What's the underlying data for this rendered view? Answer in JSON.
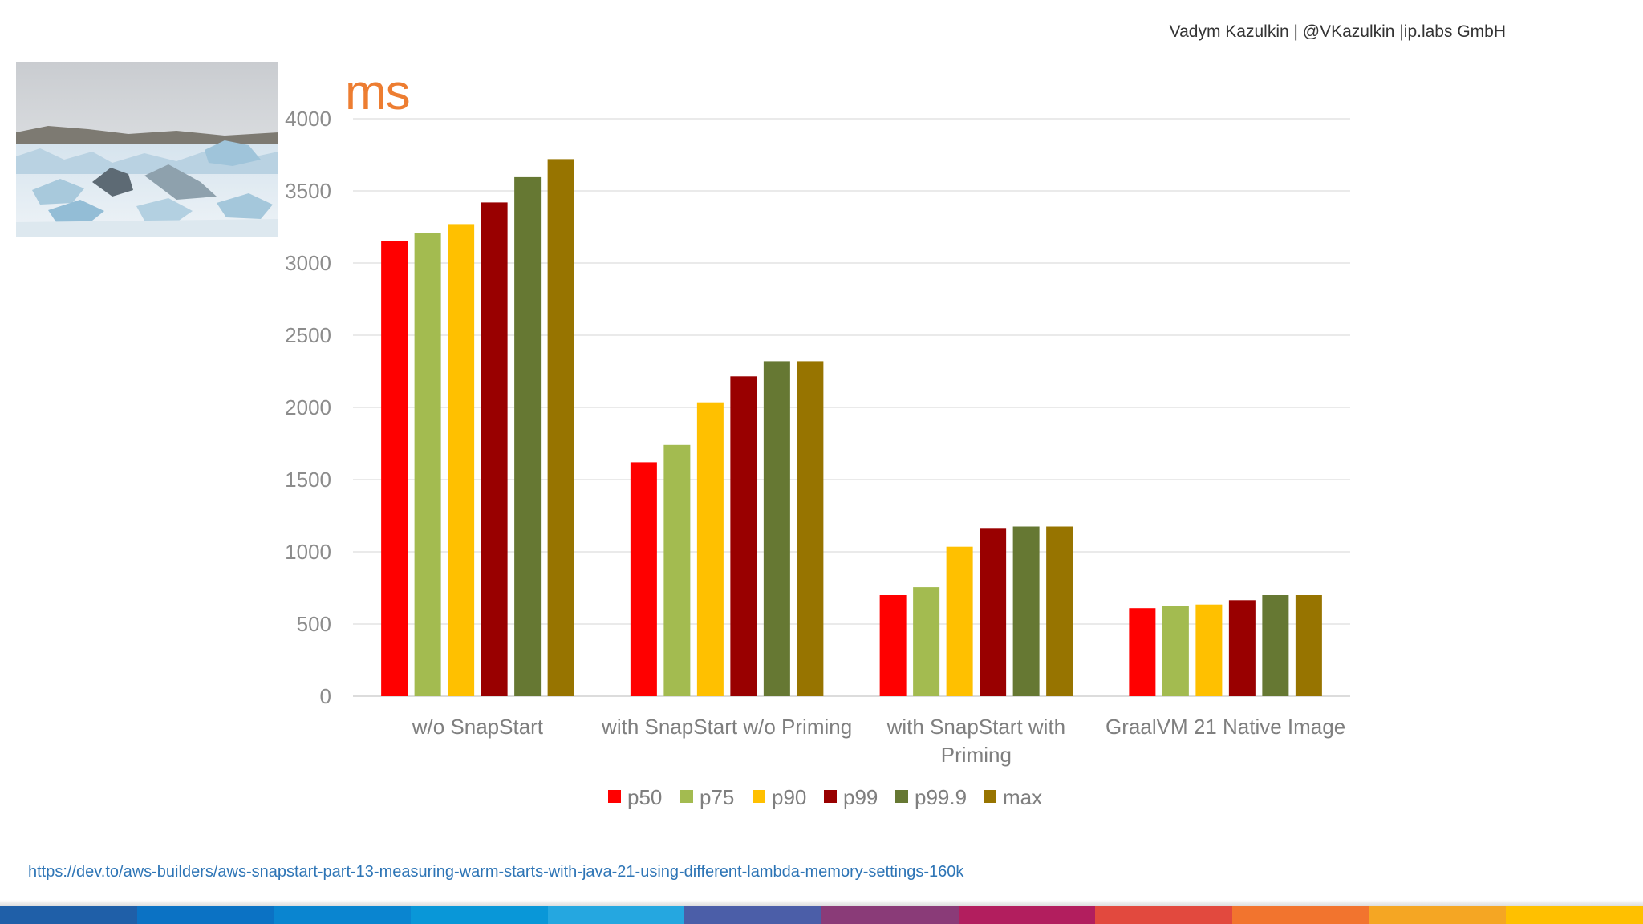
{
  "header": {
    "author": "Vadym Kazulkin | @VKazulkin |ip.labs GmbH"
  },
  "image": {
    "icon": "iceberg-photo"
  },
  "footer": {
    "link": "https://dev.to/aws-builders/aws-snapstart-part-13-measuring-warm-starts-with-java-21-using-different-lambda-memory-settings-160k",
    "stripe_colors": [
      "#1F5FA8",
      "#0B72C4",
      "#0A85D0",
      "#0997D8",
      "#25A7E0",
      "#4B5EA8",
      "#8A3B78",
      "#B21E5E",
      "#E2493E",
      "#F2742E",
      "#F5A623",
      "#FFC000"
    ]
  },
  "chart_data": {
    "type": "bar",
    "unit_label": "ms",
    "categories": [
      [
        "w/o SnapStart"
      ],
      [
        "with SnapStart w/o Priming"
      ],
      [
        "with SnapStart with",
        "Priming"
      ],
      [
        "GraalVM 21 Native Image"
      ]
    ],
    "series": [
      {
        "name": "p50",
        "color": "#FF0000",
        "values": [
          3150,
          1620,
          700,
          610
        ]
      },
      {
        "name": "p75",
        "color": "#A3BB50",
        "values": [
          3210,
          1740,
          755,
          625
        ]
      },
      {
        "name": "p90",
        "color": "#FFC000",
        "values": [
          3270,
          2035,
          1035,
          635
        ]
      },
      {
        "name": "p99",
        "color": "#990000",
        "values": [
          3420,
          2215,
          1165,
          665
        ]
      },
      {
        "name": "p99.9",
        "color": "#667833",
        "values": [
          3595,
          2320,
          1175,
          700
        ]
      },
      {
        "name": "max",
        "color": "#977400",
        "values": [
          3720,
          2320,
          1175,
          700
        ]
      }
    ],
    "y_ticks": [
      "0",
      "500",
      "1000",
      "1500",
      "2000",
      "2500",
      "3000",
      "3500",
      "4000"
    ],
    "ylim": [
      0,
      4000
    ],
    "grid": true,
    "legend": "bottom"
  }
}
